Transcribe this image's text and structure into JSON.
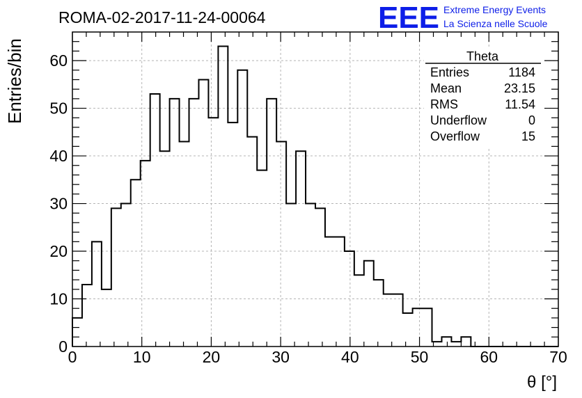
{
  "chart_data": {
    "type": "bar",
    "title": "ROMA-02-2017-11-24-00064",
    "xlabel": "θ [°]",
    "ylabel": "Entries/bin",
    "xlim": [
      0,
      70
    ],
    "ylim": [
      0,
      66
    ],
    "x_ticks": [
      0,
      10,
      20,
      30,
      40,
      50,
      60,
      70
    ],
    "y_ticks": [
      0,
      10,
      20,
      30,
      40,
      50,
      60
    ],
    "grid": true,
    "bin_width": 1.4,
    "values": [
      6,
      13,
      22,
      12,
      29,
      30,
      35,
      39,
      53,
      41,
      52,
      43,
      52,
      56,
      48,
      63,
      47,
      58,
      44,
      37,
      52,
      43,
      30,
      41,
      30,
      29,
      23,
      23,
      20,
      15,
      18,
      14,
      11,
      11,
      7,
      8,
      8,
      1,
      2,
      1,
      2,
      0,
      0,
      0,
      0,
      0,
      0,
      0,
      0,
      0
    ],
    "stats_box": {
      "title": "Theta",
      "rows": [
        {
          "label": "Entries",
          "value": "1184"
        },
        {
          "label": "Mean",
          "value": "23.15"
        },
        {
          "label": "RMS",
          "value": "11.54"
        },
        {
          "label": "Underflow",
          "value": "0"
        },
        {
          "label": "Overflow",
          "value": "15"
        }
      ]
    }
  },
  "logo": {
    "mark": "EEE",
    "line1": "Extreme Energy Events",
    "line2": "La Scienza nelle Scuole"
  }
}
